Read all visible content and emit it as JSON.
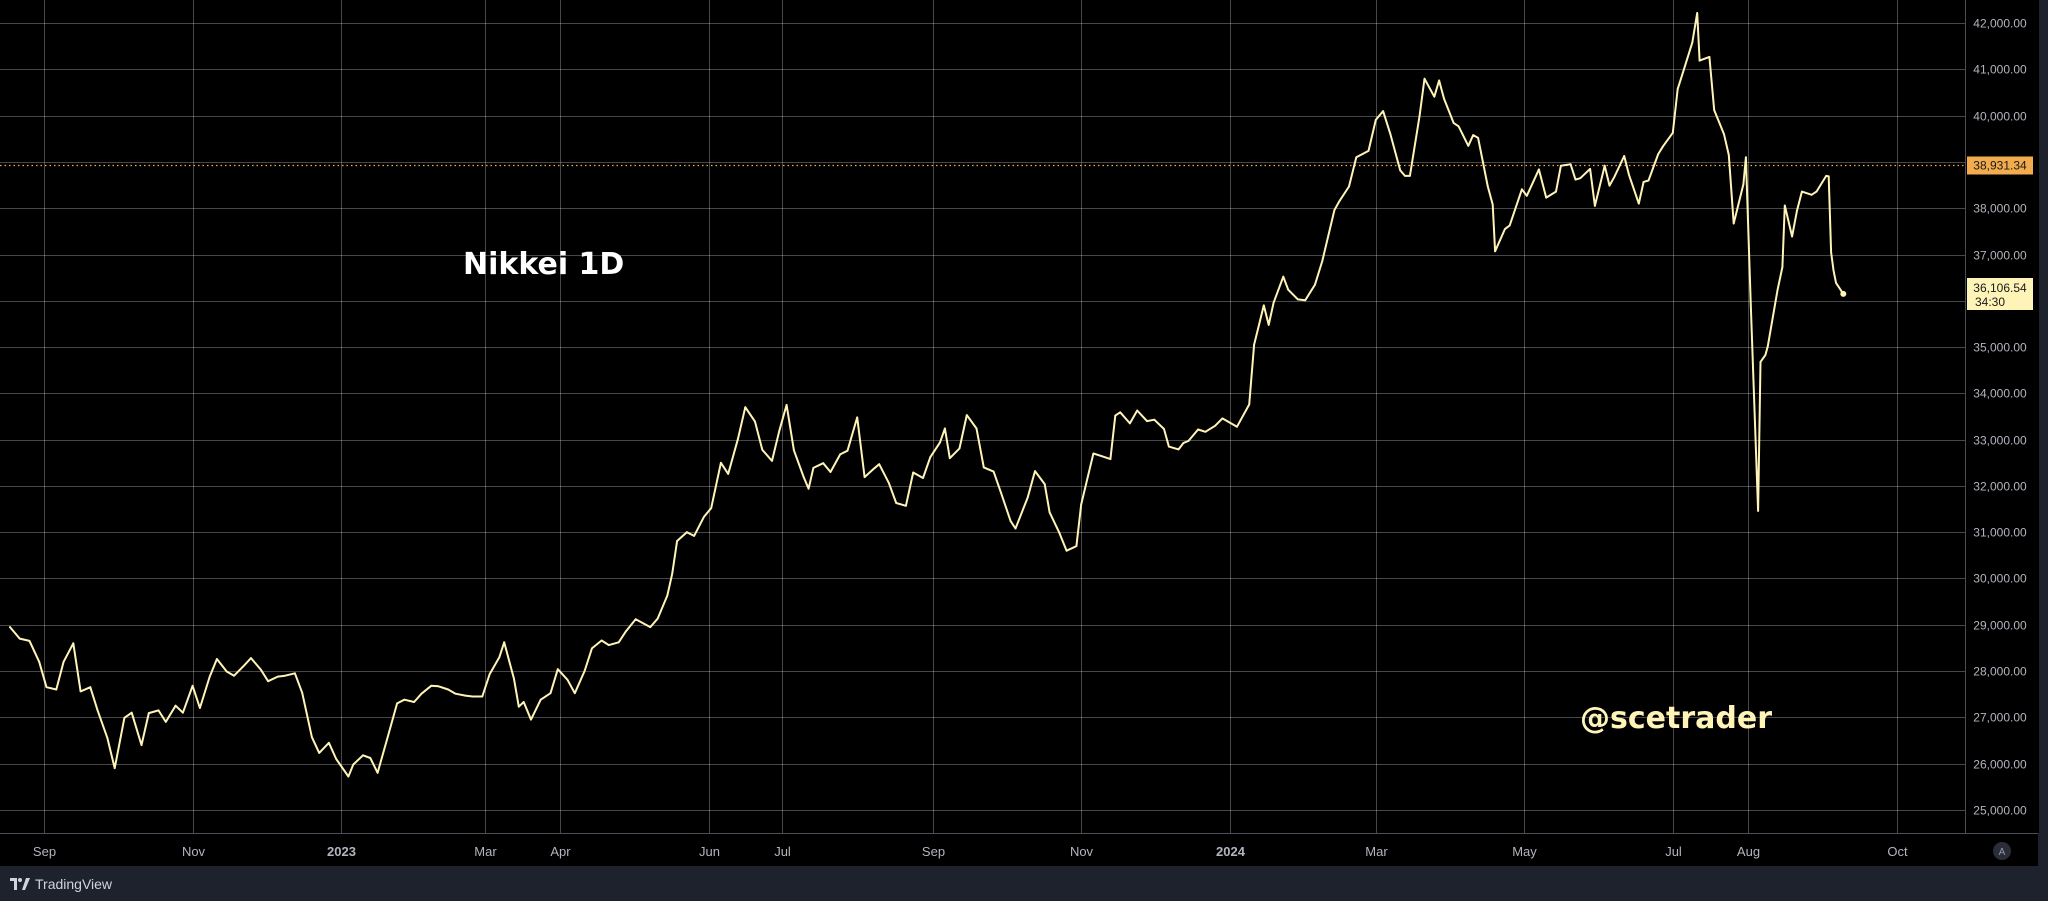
{
  "chart_data": {
    "type": "line",
    "title": "Nikkei 1D",
    "watermark": "@scetrader",
    "y_range": [
      24500,
      42500
    ],
    "y_ticks": [
      25000,
      26000,
      27000,
      28000,
      29000,
      30000,
      31000,
      32000,
      33000,
      34000,
      35000,
      36000,
      37000,
      38000,
      39000,
      40000,
      41000,
      42000
    ],
    "y_tick_labels": [
      "25,000.00",
      "26,000.00",
      "27,000.00",
      "28,000.00",
      "29,000.00",
      "30,000.00",
      "31,000.00",
      "32,000.00",
      "33,000.00",
      "34,000.00",
      "35,000.00",
      "36,000.00",
      "37,000.00",
      "38,000.00",
      "39,000.00",
      "40,000.00",
      "41,000.00",
      "42,000.00"
    ],
    "x_range": [
      "2022-08-18",
      "2024-10-29"
    ],
    "x_ticks": [
      {
        "date": "2022-09-01",
        "label": "Sep"
      },
      {
        "date": "2022-11-01",
        "label": "Nov"
      },
      {
        "date": "2023-01-01",
        "label": "2023",
        "bold": true
      },
      {
        "date": "2023-03-01",
        "label": "Mar"
      },
      {
        "date": "2023-04-01",
        "label": "Apr"
      },
      {
        "date": "2023-06-01",
        "label": "Jun"
      },
      {
        "date": "2023-07-01",
        "label": "Jul"
      },
      {
        "date": "2023-09-01",
        "label": "Sep"
      },
      {
        "date": "2023-11-01",
        "label": "Nov"
      },
      {
        "date": "2024-01-01",
        "label": "2024",
        "bold": true
      },
      {
        "date": "2024-03-01",
        "label": "Mar"
      },
      {
        "date": "2024-05-01",
        "label": "May"
      },
      {
        "date": "2024-07-01",
        "label": "Jul"
      },
      {
        "date": "2024-08-01",
        "label": "Aug"
      },
      {
        "date": "2024-10-01",
        "label": "Oct"
      }
    ],
    "series": [
      {
        "color": "#fff4b8",
        "points": [
          [
            "2022-08-18",
            28950
          ],
          [
            "2022-08-22",
            28700
          ],
          [
            "2022-08-26",
            28650
          ],
          [
            "2022-08-30",
            28200
          ],
          [
            "2022-09-02",
            27650
          ],
          [
            "2022-09-06",
            27600
          ],
          [
            "2022-09-09",
            28200
          ],
          [
            "2022-09-13",
            28600
          ],
          [
            "2022-09-16",
            27560
          ],
          [
            "2022-09-20",
            27650
          ],
          [
            "2022-09-23",
            27150
          ],
          [
            "2022-09-27",
            26550
          ],
          [
            "2022-09-30",
            25900
          ],
          [
            "2022-10-04",
            26990
          ],
          [
            "2022-10-07",
            27100
          ],
          [
            "2022-10-11",
            26400
          ],
          [
            "2022-10-14",
            27090
          ],
          [
            "2022-10-18",
            27150
          ],
          [
            "2022-10-21",
            26900
          ],
          [
            "2022-10-25",
            27250
          ],
          [
            "2022-10-28",
            27100
          ],
          [
            "2022-11-01",
            27680
          ],
          [
            "2022-11-04",
            27200
          ],
          [
            "2022-11-08",
            27870
          ],
          [
            "2022-11-11",
            28260
          ],
          [
            "2022-11-15",
            27990
          ],
          [
            "2022-11-18",
            27900
          ],
          [
            "2022-11-22",
            28110
          ],
          [
            "2022-11-25",
            28280
          ],
          [
            "2022-11-29",
            28030
          ],
          [
            "2022-12-02",
            27780
          ],
          [
            "2022-12-06",
            27880
          ],
          [
            "2022-12-09",
            27900
          ],
          [
            "2022-12-13",
            27950
          ],
          [
            "2022-12-16",
            27530
          ],
          [
            "2022-12-20",
            26570
          ],
          [
            "2022-12-23",
            26230
          ],
          [
            "2022-12-27",
            26450
          ],
          [
            "2022-12-30",
            26100
          ],
          [
            "2023-01-04",
            25720
          ],
          [
            "2023-01-06",
            25980
          ],
          [
            "2023-01-10",
            26180
          ],
          [
            "2023-01-13",
            26120
          ],
          [
            "2023-01-16",
            25800
          ],
          [
            "2023-01-20",
            26550
          ],
          [
            "2023-01-24",
            27300
          ],
          [
            "2023-01-27",
            27380
          ],
          [
            "2023-01-31",
            27330
          ],
          [
            "2023-02-03",
            27510
          ],
          [
            "2023-02-07",
            27680
          ],
          [
            "2023-02-10",
            27670
          ],
          [
            "2023-02-14",
            27600
          ],
          [
            "2023-02-17",
            27510
          ],
          [
            "2023-02-21",
            27470
          ],
          [
            "2023-02-24",
            27450
          ],
          [
            "2023-02-28",
            27450
          ],
          [
            "2023-03-03",
            27930
          ],
          [
            "2023-03-07",
            28300
          ],
          [
            "2023-03-09",
            28620
          ],
          [
            "2023-03-13",
            27830
          ],
          [
            "2023-03-15",
            27230
          ],
          [
            "2023-03-17",
            27330
          ],
          [
            "2023-03-20",
            26950
          ],
          [
            "2023-03-24",
            27380
          ],
          [
            "2023-03-28",
            27520
          ],
          [
            "2023-03-31",
            28040
          ],
          [
            "2023-04-04",
            27810
          ],
          [
            "2023-04-07",
            27520
          ],
          [
            "2023-04-11",
            28000
          ],
          [
            "2023-04-14",
            28490
          ],
          [
            "2023-04-18",
            28660
          ],
          [
            "2023-04-21",
            28560
          ],
          [
            "2023-04-25",
            28620
          ],
          [
            "2023-04-28",
            28860
          ],
          [
            "2023-05-02",
            29120
          ],
          [
            "2023-05-08",
            28950
          ],
          [
            "2023-05-11",
            29130
          ],
          [
            "2023-05-15",
            29630
          ],
          [
            "2023-05-17",
            30100
          ],
          [
            "2023-05-19",
            30810
          ],
          [
            "2023-05-23",
            31000
          ],
          [
            "2023-05-26",
            30920
          ],
          [
            "2023-05-30",
            31330
          ],
          [
            "2023-06-02",
            31520
          ],
          [
            "2023-06-06",
            32500
          ],
          [
            "2023-06-09",
            32260
          ],
          [
            "2023-06-13",
            33020
          ],
          [
            "2023-06-16",
            33700
          ],
          [
            "2023-06-20",
            33390
          ],
          [
            "2023-06-23",
            32780
          ],
          [
            "2023-06-27",
            32540
          ],
          [
            "2023-06-30",
            33190
          ],
          [
            "2023-07-03",
            33750
          ],
          [
            "2023-07-06",
            32770
          ],
          [
            "2023-07-10",
            32190
          ],
          [
            "2023-07-12",
            31940
          ],
          [
            "2023-07-14",
            32390
          ],
          [
            "2023-07-18",
            32490
          ],
          [
            "2023-07-21",
            32300
          ],
          [
            "2023-07-25",
            32680
          ],
          [
            "2023-07-28",
            32760
          ],
          [
            "2023-08-01",
            33480
          ],
          [
            "2023-08-04",
            32190
          ],
          [
            "2023-08-08",
            32380
          ],
          [
            "2023-08-10",
            32470
          ],
          [
            "2023-08-14",
            32060
          ],
          [
            "2023-08-17",
            31630
          ],
          [
            "2023-08-21",
            31570
          ],
          [
            "2023-08-24",
            32290
          ],
          [
            "2023-08-28",
            32170
          ],
          [
            "2023-08-31",
            32620
          ],
          [
            "2023-09-04",
            32940
          ],
          [
            "2023-09-06",
            33240
          ],
          [
            "2023-09-08",
            32600
          ],
          [
            "2023-09-12",
            32810
          ],
          [
            "2023-09-15",
            33530
          ],
          [
            "2023-09-19",
            33240
          ],
          [
            "2023-09-22",
            32400
          ],
          [
            "2023-09-26",
            32310
          ],
          [
            "2023-09-29",
            31860
          ],
          [
            "2023-10-03",
            31240
          ],
          [
            "2023-10-05",
            31080
          ],
          [
            "2023-10-10",
            31750
          ],
          [
            "2023-10-13",
            32320
          ],
          [
            "2023-10-17",
            32040
          ],
          [
            "2023-10-19",
            31430
          ],
          [
            "2023-10-23",
            30990
          ],
          [
            "2023-10-26",
            30600
          ],
          [
            "2023-10-30",
            30700
          ],
          [
            "2023-11-01",
            31600
          ],
          [
            "2023-11-06",
            32700
          ],
          [
            "2023-11-09",
            32650
          ],
          [
            "2023-11-13",
            32580
          ],
          [
            "2023-11-15",
            33520
          ],
          [
            "2023-11-17",
            33590
          ],
          [
            "2023-11-21",
            33350
          ],
          [
            "2023-11-24",
            33630
          ],
          [
            "2023-11-28",
            33400
          ],
          [
            "2023-12-01",
            33430
          ],
          [
            "2023-12-05",
            33230
          ],
          [
            "2023-12-07",
            32850
          ],
          [
            "2023-12-11",
            32790
          ],
          [
            "2023-12-13",
            32930
          ],
          [
            "2023-12-15",
            32970
          ],
          [
            "2023-12-19",
            33220
          ],
          [
            "2023-12-22",
            33170
          ],
          [
            "2023-12-26",
            33300
          ],
          [
            "2023-12-29",
            33460
          ],
          [
            "2024-01-04",
            33280
          ],
          [
            "2024-01-09",
            33760
          ],
          [
            "2024-01-11",
            35050
          ],
          [
            "2024-01-15",
            35900
          ],
          [
            "2024-01-17",
            35480
          ],
          [
            "2024-01-19",
            35960
          ],
          [
            "2024-01-23",
            36520
          ],
          [
            "2024-01-25",
            36240
          ],
          [
            "2024-01-29",
            36030
          ],
          [
            "2024-02-01",
            36010
          ],
          [
            "2024-02-05",
            36350
          ],
          [
            "2024-02-08",
            36860
          ],
          [
            "2024-02-13",
            37960
          ],
          [
            "2024-02-15",
            38150
          ],
          [
            "2024-02-19",
            38470
          ],
          [
            "2024-02-22",
            39100
          ],
          [
            "2024-02-27",
            39240
          ],
          [
            "2024-03-01",
            39910
          ],
          [
            "2024-03-04",
            40100
          ],
          [
            "2024-03-07",
            39600
          ],
          [
            "2024-03-11",
            38820
          ],
          [
            "2024-03-13",
            38700
          ],
          [
            "2024-03-15",
            38700
          ],
          [
            "2024-03-19",
            40000
          ],
          [
            "2024-03-21",
            40800
          ],
          [
            "2024-03-25",
            40410
          ],
          [
            "2024-03-27",
            40760
          ],
          [
            "2024-03-29",
            40370
          ],
          [
            "2024-04-02",
            39840
          ],
          [
            "2024-04-04",
            39770
          ],
          [
            "2024-04-08",
            39350
          ],
          [
            "2024-04-10",
            39580
          ],
          [
            "2024-04-12",
            39520
          ],
          [
            "2024-04-16",
            38470
          ],
          [
            "2024-04-18",
            38080
          ],
          [
            "2024-04-19",
            37070
          ],
          [
            "2024-04-23",
            37550
          ],
          [
            "2024-04-25",
            37630
          ],
          [
            "2024-04-30",
            38410
          ],
          [
            "2024-05-02",
            38270
          ],
          [
            "2024-05-07",
            38840
          ],
          [
            "2024-05-10",
            38230
          ],
          [
            "2024-05-14",
            38360
          ],
          [
            "2024-05-16",
            38920
          ],
          [
            "2024-05-20",
            38950
          ],
          [
            "2024-05-22",
            38620
          ],
          [
            "2024-05-24",
            38650
          ],
          [
            "2024-05-28",
            38850
          ],
          [
            "2024-05-30",
            38050
          ],
          [
            "2024-06-03",
            38920
          ],
          [
            "2024-06-05",
            38490
          ],
          [
            "2024-06-07",
            38680
          ],
          [
            "2024-06-11",
            39130
          ],
          [
            "2024-06-13",
            38720
          ],
          [
            "2024-06-17",
            38100
          ],
          [
            "2024-06-19",
            38570
          ],
          [
            "2024-06-21",
            38600
          ],
          [
            "2024-06-25",
            39170
          ],
          [
            "2024-06-27",
            39340
          ],
          [
            "2024-07-01",
            39630
          ],
          [
            "2024-07-03",
            40580
          ],
          [
            "2024-07-05",
            40910
          ],
          [
            "2024-07-09",
            41580
          ],
          [
            "2024-07-11",
            42220
          ],
          [
            "2024-07-12",
            41190
          ],
          [
            "2024-07-16",
            41270
          ],
          [
            "2024-07-18",
            40120
          ],
          [
            "2024-07-22",
            39600
          ],
          [
            "2024-07-24",
            39150
          ],
          [
            "2024-07-26",
            37670
          ],
          [
            "2024-07-30",
            38520
          ],
          [
            "2024-07-31",
            39100
          ],
          [
            "2024-08-02",
            35900
          ],
          [
            "2024-08-05",
            31460
          ],
          [
            "2024-08-06",
            34680
          ],
          [
            "2024-08-08",
            34830
          ],
          [
            "2024-08-09",
            35020
          ],
          [
            "2024-08-13",
            36230
          ],
          [
            "2024-08-15",
            36730
          ],
          [
            "2024-08-16",
            38060
          ],
          [
            "2024-08-19",
            37390
          ],
          [
            "2024-08-21",
            37950
          ],
          [
            "2024-08-23",
            38360
          ],
          [
            "2024-08-27",
            38290
          ],
          [
            "2024-08-29",
            38360
          ],
          [
            "2024-09-02",
            38700
          ],
          [
            "2024-09-03",
            38690
          ],
          [
            "2024-09-04",
            37050
          ],
          [
            "2024-09-05",
            36660
          ],
          [
            "2024-09-06",
            36390
          ],
          [
            "2024-09-09",
            36150
          ]
        ]
      }
    ],
    "last_value_label": "36,106.54",
    "countdown": "34:30",
    "reference_line_value": 38931.34,
    "reference_line_label": "38,931.34",
    "grid": true,
    "colors": {
      "background": "#000000",
      "line": "#fff4b8",
      "reference": "#f2ac4e",
      "grid": "#ffffff",
      "text": "#b2b5be"
    }
  },
  "footer": {
    "brand": "TradingView"
  },
  "scale_button_label": "A"
}
